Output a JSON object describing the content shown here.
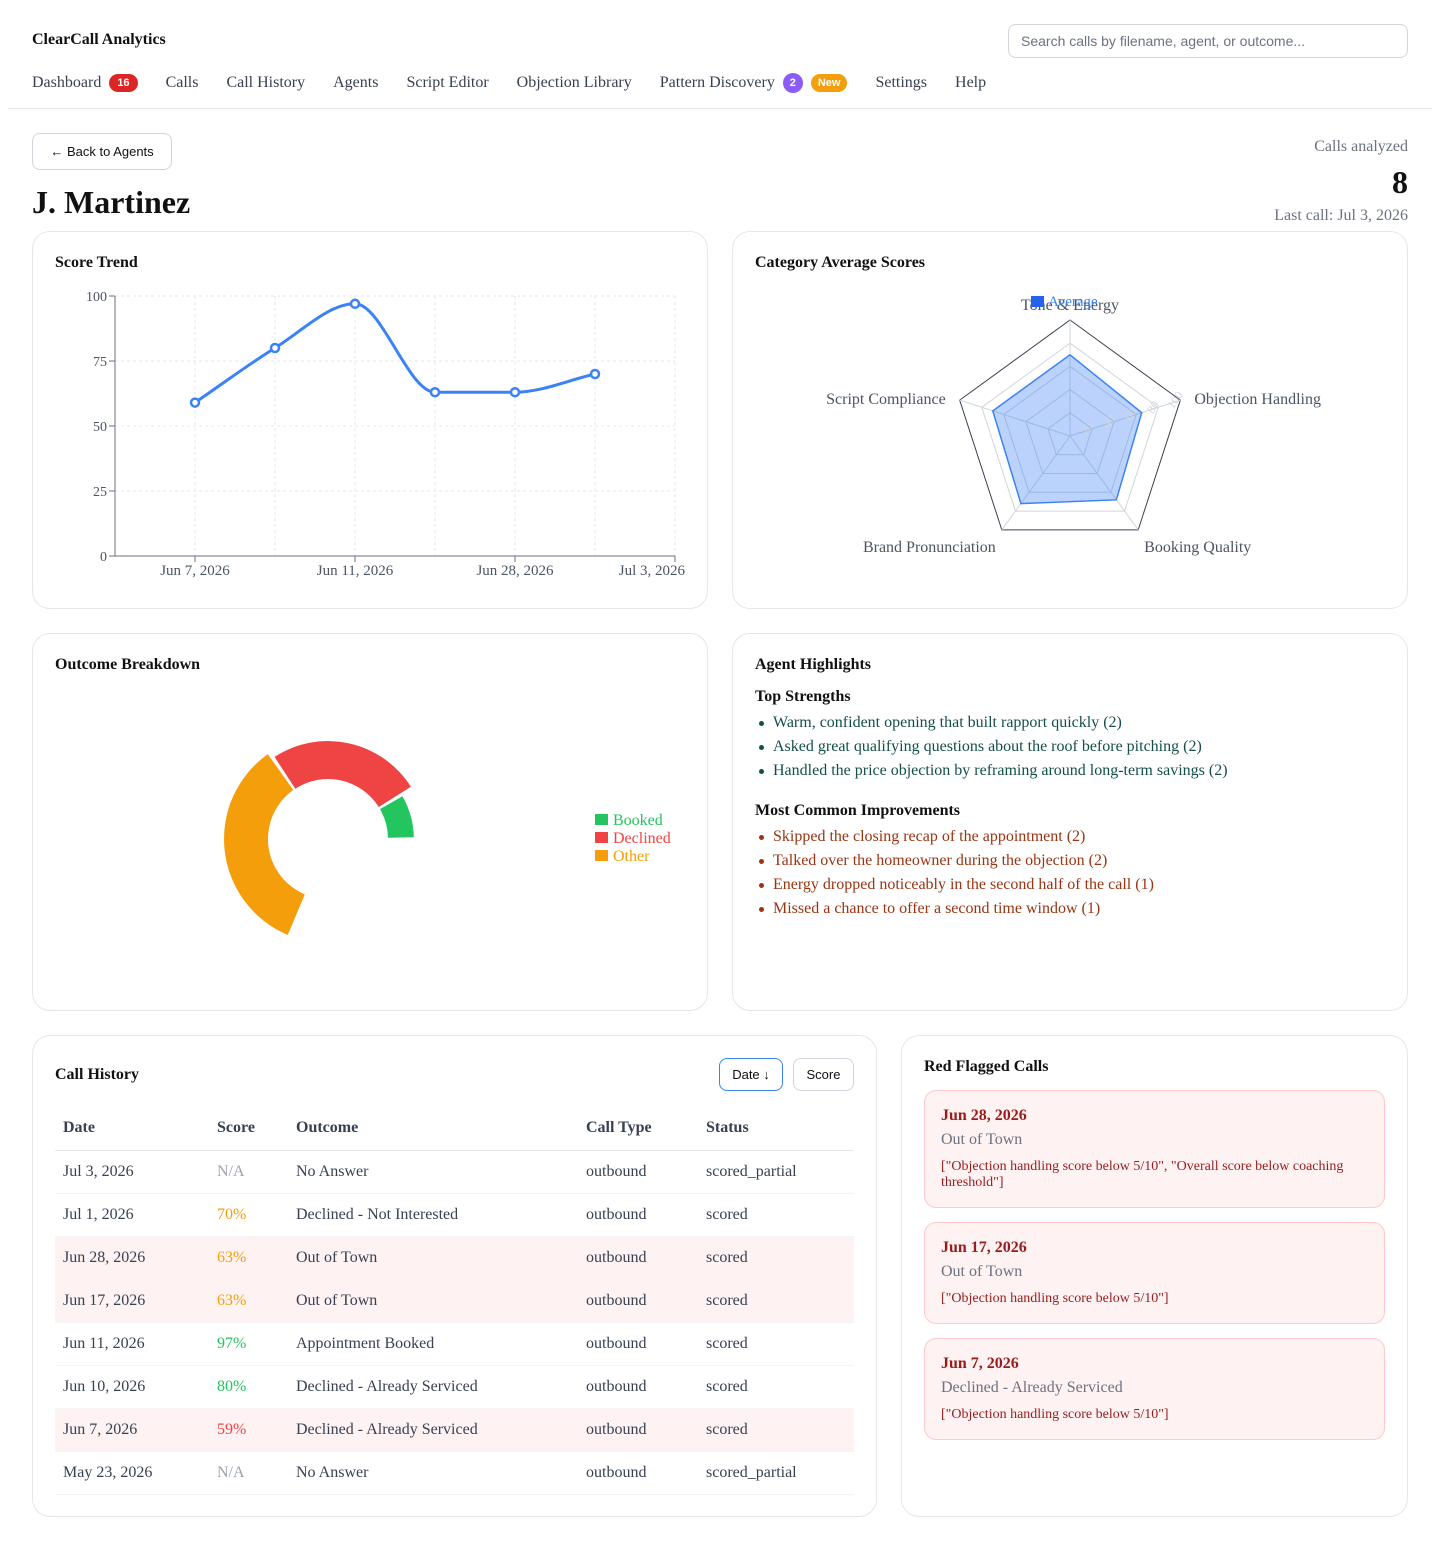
{
  "app": {
    "brand": "ClearCall Analytics",
    "search_placeholder": "Search calls by filename, agent, or outcome...",
    "nav": [
      {
        "label": "Dashboard",
        "badge": "16"
      },
      {
        "label": "Calls"
      },
      {
        "label": "Call History"
      },
      {
        "label": "Agents"
      },
      {
        "label": "Script Editor"
      },
      {
        "label": "Objection Library"
      },
      {
        "label": "Pattern Discovery",
        "badge": "2",
        "tag": "New"
      },
      {
        "label": "Settings"
      },
      {
        "label": "Help"
      }
    ]
  },
  "agent": {
    "back_label": "← Back to Agents",
    "name": "J. Martinez",
    "calls_label": "Calls analyzed",
    "calls_count": "8",
    "last_call": "Last call: Jul 3, 2026"
  },
  "score_trend": {
    "title": "Score Trend",
    "chart_data": {
      "type": "line",
      "x": [
        "Jun 7, 2026",
        "Jun 10, 2026",
        "Jun 11, 2026",
        "Jun 17, 2026",
        "Jun 28, 2026",
        "Jul 1, 2026"
      ],
      "x_tick_labels": [
        "Jun 7, 2026",
        "Jun 11, 2026",
        "Jun 28, 2026",
        "Jul 3, 2026"
      ],
      "values": [
        59,
        80,
        97,
        63,
        63,
        70
      ],
      "y_ticks": [
        "0",
        "25",
        "50",
        "75",
        "100"
      ],
      "ylim": [
        0,
        100
      ],
      "grid": true,
      "color": "#3b82f6"
    }
  },
  "category_scores": {
    "title": "Category Average Scores",
    "chart_data": {
      "type": "radar",
      "categories": [
        "Tone & Energy",
        "Objection Handling",
        "Booking Quality",
        "Brand Pronunciation",
        "Script Compliance"
      ],
      "series": [
        {
          "name": "Average",
          "values": [
            70,
            65,
            68,
            72,
            70
          ]
        }
      ],
      "r_ticks": [
        "20",
        "40",
        "60",
        "80",
        "100"
      ],
      "rlim": [
        0,
        100
      ],
      "legend": "top",
      "color": "#3b82f6"
    }
  },
  "outcome_breakdown": {
    "title": "Outcome Breakdown",
    "chart_data": {
      "type": "pie",
      "categories": [
        "Booked",
        "Declined",
        "Other"
      ],
      "values": [
        1,
        3,
        4
      ],
      "colors": [
        "#22c55e",
        "#ef4444",
        "#f59e0b"
      ],
      "legend": "right"
    }
  },
  "highlights": {
    "title": "Agent Highlights",
    "strengths_title": "Top Strengths",
    "strengths": [
      "Warm, confident opening that built rapport quickly (2)",
      "Asked great qualifying questions about the roof before pitching (2)",
      "Handled the price objection by reframing around long-term savings (2)"
    ],
    "improvements_title": "Most Common Improvements",
    "improvements": [
      "Skipped the closing recap of the appointment (2)",
      "Talked over the homeowner during the objection (2)",
      "Energy dropped noticeably in the second half of the call (1)",
      "Missed a chance to offer a second time window (1)"
    ]
  },
  "call_history": {
    "title": "Call History",
    "sort_date": "Date ↓",
    "sort_score": "Score",
    "columns": [
      "Date",
      "Score",
      "Outcome",
      "Call Type",
      "Status"
    ],
    "score_colors": {
      "na": "#9ca3af",
      "mid": "#f59e0b",
      "high": "#22c55e",
      "low": "#ef4444"
    },
    "rows": [
      {
        "date": "Jul 3, 2026",
        "score": "N/A",
        "score_class": "na",
        "outcome": "No Answer",
        "type": "outbound",
        "status": "scored_partial",
        "flagged": false
      },
      {
        "date": "Jul 1, 2026",
        "score": "70%",
        "score_class": "mid",
        "outcome": "Declined - Not Interested",
        "type": "outbound",
        "status": "scored",
        "flagged": false
      },
      {
        "date": "Jun 28, 2026",
        "score": "63%",
        "score_class": "mid",
        "outcome": "Out of Town",
        "type": "outbound",
        "status": "scored",
        "flagged": true
      },
      {
        "date": "Jun 17, 2026",
        "score": "63%",
        "score_class": "mid",
        "outcome": "Out of Town",
        "type": "outbound",
        "status": "scored",
        "flagged": true
      },
      {
        "date": "Jun 11, 2026",
        "score": "97%",
        "score_class": "high",
        "outcome": "Appointment Booked",
        "type": "outbound",
        "status": "scored",
        "flagged": false
      },
      {
        "date": "Jun 10, 2026",
        "score": "80%",
        "score_class": "high",
        "outcome": "Declined - Already Serviced",
        "type": "outbound",
        "status": "scored",
        "flagged": false
      },
      {
        "date": "Jun 7, 2026",
        "score": "59%",
        "score_class": "low",
        "outcome": "Declined - Already Serviced",
        "type": "outbound",
        "status": "scored",
        "flagged": true
      },
      {
        "date": "May 23, 2026",
        "score": "N/A",
        "score_class": "na",
        "outcome": "No Answer",
        "type": "outbound",
        "status": "scored_partial",
        "flagged": false
      }
    ]
  },
  "red_flags": {
    "title": "Red Flagged Calls",
    "items": [
      {
        "date": "Jun 28, 2026",
        "outcome": "Out of Town",
        "reasons": "[\"Objection handling score below 5/10\", \"Overall score below coaching threshold\"]"
      },
      {
        "date": "Jun 17, 2026",
        "outcome": "Out of Town",
        "reasons": "[\"Objection handling score below 5/10\"]"
      },
      {
        "date": "Jun 7, 2026",
        "outcome": "Declined - Already Serviced",
        "reasons": "[\"Objection handling score below 5/10\"]"
      }
    ]
  }
}
